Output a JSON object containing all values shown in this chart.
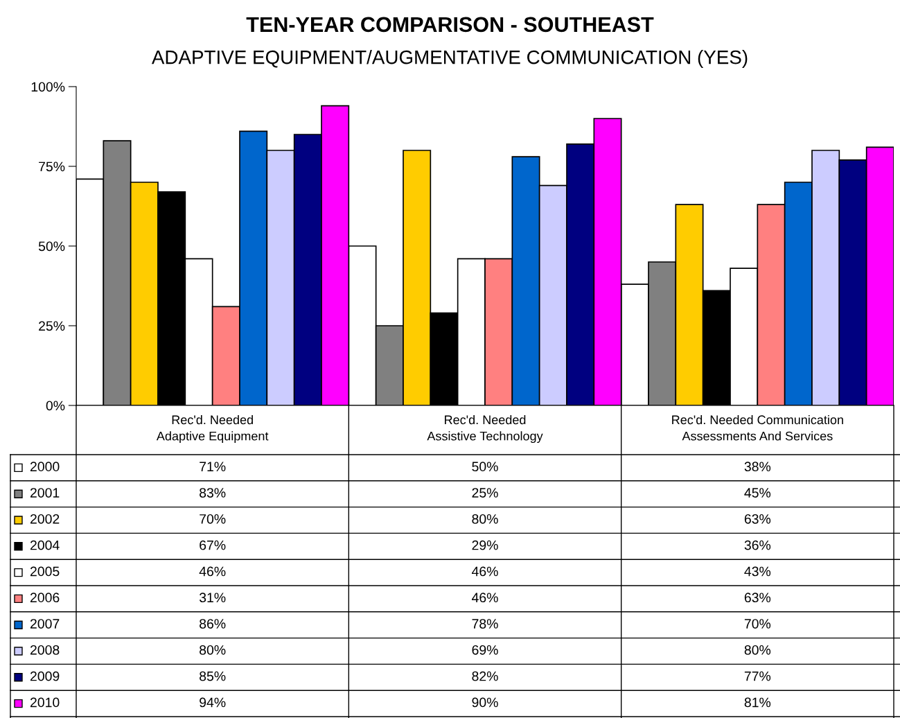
{
  "chart_data": {
    "type": "bar",
    "title": "TEN-YEAR COMPARISON - SOUTHEAST",
    "subtitle": "ADAPTIVE EQUIPMENT/AUGMENTATIVE COMMUNICATION (YES)",
    "categories": [
      "Rec'd. Needed Adaptive Equipment",
      "Rec'd. Needed Assistive Technology",
      "Rec'd. Needed Communication Assessments And Services"
    ],
    "series": [
      {
        "name": "2000",
        "color": "#ffffff",
        "values": [
          71,
          50,
          38
        ],
        "value_labels": [
          "71%",
          "50%",
          "38%"
        ]
      },
      {
        "name": "2001",
        "color": "#808080",
        "values": [
          83,
          25,
          45
        ],
        "value_labels": [
          "83%",
          "25%",
          "45%"
        ]
      },
      {
        "name": "2002",
        "color": "#ffcc00",
        "values": [
          70,
          80,
          63
        ],
        "value_labels": [
          "70%",
          "80%",
          "63%"
        ]
      },
      {
        "name": "2004",
        "color": "#000000",
        "values": [
          67,
          29,
          36
        ],
        "value_labels": [
          "67%",
          "29%",
          "36%"
        ]
      },
      {
        "name": "2005",
        "color": "#ffffff",
        "values": [
          46,
          46,
          43
        ],
        "value_labels": [
          "46%",
          "46%",
          "43%"
        ]
      },
      {
        "name": "2006",
        "color": "#ff8080",
        "values": [
          31,
          46,
          63
        ],
        "value_labels": [
          "31%",
          "46%",
          "63%"
        ]
      },
      {
        "name": "2007",
        "color": "#0066cc",
        "values": [
          86,
          78,
          70
        ],
        "value_labels": [
          "86%",
          "78%",
          "70%"
        ]
      },
      {
        "name": "2008",
        "color": "#ccccff",
        "values": [
          80,
          69,
          80
        ],
        "value_labels": [
          "80%",
          "69%",
          "80%"
        ]
      },
      {
        "name": "2009",
        "color": "#000080",
        "values": [
          85,
          82,
          77
        ],
        "value_labels": [
          "85%",
          "82%",
          "77%"
        ]
      },
      {
        "name": "2010",
        "color": "#ff00ff",
        "values": [
          94,
          90,
          81
        ],
        "value_labels": [
          "94%",
          "90%",
          "81%"
        ]
      }
    ],
    "ylim": [
      0,
      100
    ],
    "yticks": [
      {
        "value": 0,
        "label": "0%"
      },
      {
        "value": 25,
        "label": "25%"
      },
      {
        "value": 50,
        "label": "50%"
      },
      {
        "value": 75,
        "label": "75%"
      },
      {
        "value": 100,
        "label": "100%"
      }
    ],
    "grid": false,
    "legend": "bottom"
  }
}
